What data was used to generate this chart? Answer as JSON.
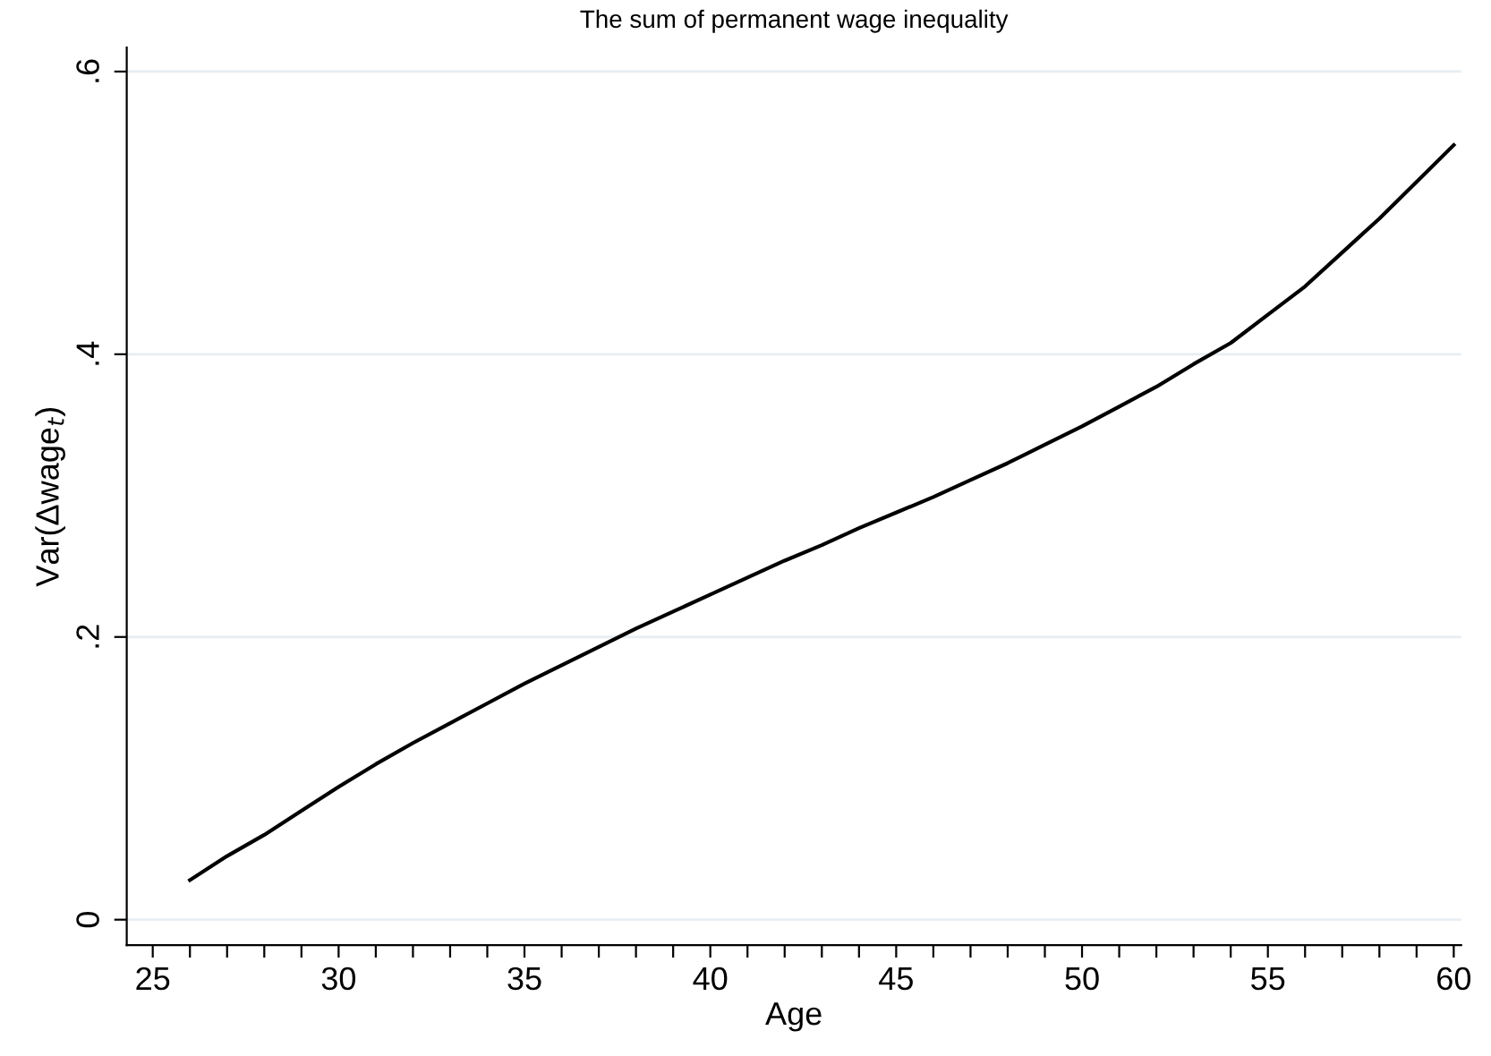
{
  "chart_data": {
    "type": "line",
    "title": "The sum of permanent wage inequality",
    "xlabel": "Age",
    "ylabel": "Var(Δwage$_{t}$)",
    "x": [
      26,
      27,
      28,
      29,
      30,
      31,
      32,
      33,
      34,
      35,
      36,
      37,
      38,
      39,
      40,
      41,
      42,
      43,
      44,
      45,
      46,
      47,
      48,
      49,
      50,
      51,
      52,
      53,
      54,
      55,
      56,
      57,
      58,
      59,
      60
    ],
    "series": [
      {
        "color": "#000000",
        "values": [
          0.028,
          0.045,
          0.06,
          0.077,
          0.094,
          0.11,
          0.125,
          0.139,
          0.153,
          0.167,
          0.18,
          0.193,
          0.206,
          0.218,
          0.23,
          0.242,
          0.254,
          0.265,
          0.277,
          0.288,
          0.299,
          0.311,
          0.323,
          0.336,
          0.349,
          0.363,
          0.377,
          0.393,
          0.408,
          0.428,
          0.448,
          0.472,
          0.496,
          0.522,
          0.548
        ]
      }
    ],
    "xlim": [
      24.3,
      60.2
    ],
    "ylim": [
      -0.018,
      0.617
    ],
    "xticks": [
      25,
      {
        "value": 26,
        "label": null
      },
      {
        "value": 27,
        "label": null
      },
      {
        "value": 28,
        "label": null
      },
      {
        "value": 29,
        "label": null
      },
      30,
      {
        "value": 31,
        "label": null
      },
      {
        "value": 32,
        "label": null
      },
      {
        "value": 33,
        "label": null
      },
      {
        "value": 34,
        "label": null
      },
      35,
      {
        "value": 36,
        "label": null
      },
      {
        "value": 37,
        "label": null
      },
      {
        "value": 38,
        "label": null
      },
      {
        "value": 39,
        "label": null
      },
      40,
      {
        "value": 41,
        "label": null
      },
      {
        "value": 42,
        "label": null
      },
      {
        "value": 43,
        "label": null
      },
      {
        "value": 44,
        "label": null
      },
      45,
      {
        "value": 46,
        "label": null
      },
      {
        "value": 47,
        "label": null
      },
      {
        "value": 48,
        "label": null
      },
      {
        "value": 49,
        "label": null
      },
      50,
      {
        "value": 51,
        "label": null
      },
      {
        "value": 52,
        "label": null
      },
      {
        "value": 53,
        "label": null
      },
      {
        "value": 54,
        "label": null
      },
      55,
      {
        "value": 56,
        "label": null
      },
      {
        "value": 57,
        "label": null
      },
      {
        "value": 58,
        "label": null
      },
      {
        "value": 59,
        "label": null
      },
      60
    ],
    "yticks": [
      {
        "value": 0,
        "label": "0"
      },
      {
        "value": 0.2,
        "label": ".2"
      },
      {
        "value": 0.4,
        "label": ".4"
      },
      {
        "value": 0.6,
        "label": ".6"
      }
    ],
    "grid": "y",
    "marker": "none",
    "line_style": "solid",
    "legend": false
  }
}
